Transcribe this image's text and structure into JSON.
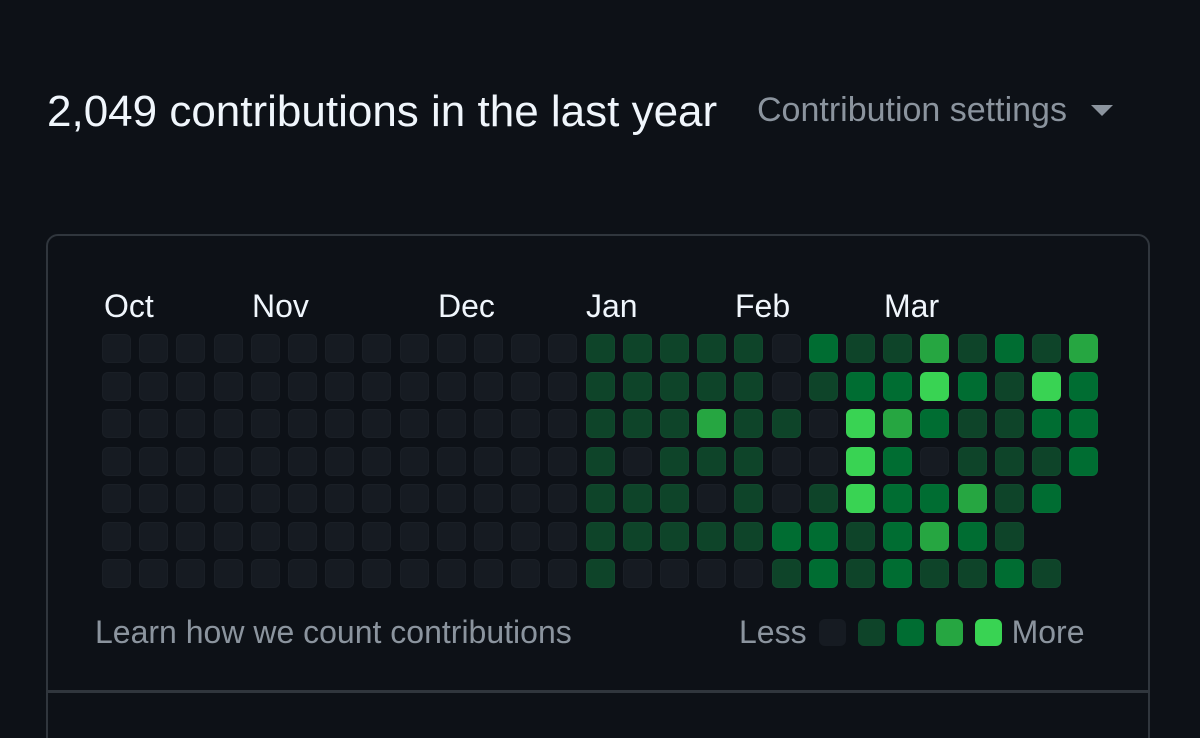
{
  "header": {
    "title": "2,049 contributions in the last year",
    "settings_label": "Contribution settings",
    "settings_icon": "caret-down-icon"
  },
  "months": [
    "Oct",
    "Nov",
    "Dec",
    "Jan",
    "Feb",
    "Mar"
  ],
  "colors": {
    "background": "#0d1117",
    "border": "#30363d",
    "muted_text": "#8b949e",
    "text": "#f0f6fc",
    "levels": [
      "#161b22",
      "#0e4429",
      "#006d32",
      "#26a641",
      "#39d353"
    ]
  },
  "footer": {
    "learn_link": "Learn how we count contributions",
    "less_label": "Less",
    "more_label": "More"
  },
  "chart_data": {
    "type": "heatmap",
    "rows": 7,
    "columns": 27,
    "x_labels": [
      "Oct",
      "Nov",
      "Dec",
      "Jan",
      "Feb",
      "Mar"
    ],
    "value_scale": "contribution level 0-4",
    "weeks": [
      [
        0,
        0,
        0,
        0,
        0,
        0,
        0
      ],
      [
        0,
        0,
        0,
        0,
        0,
        0,
        0
      ],
      [
        0,
        0,
        0,
        0,
        0,
        0,
        0
      ],
      [
        0,
        0,
        0,
        0,
        0,
        0,
        0
      ],
      [
        0,
        0,
        0,
        0,
        0,
        0,
        0
      ],
      [
        0,
        0,
        0,
        0,
        0,
        0,
        0
      ],
      [
        0,
        0,
        0,
        0,
        0,
        0,
        0
      ],
      [
        0,
        0,
        0,
        0,
        0,
        0,
        0
      ],
      [
        0,
        0,
        0,
        0,
        0,
        0,
        0
      ],
      [
        0,
        0,
        0,
        0,
        0,
        0,
        0
      ],
      [
        0,
        0,
        0,
        0,
        0,
        0,
        0
      ],
      [
        0,
        0,
        0,
        0,
        0,
        0,
        0
      ],
      [
        0,
        0,
        0,
        0,
        0,
        0,
        0
      ],
      [
        1,
        1,
        1,
        1,
        1,
        1,
        1
      ],
      [
        1,
        1,
        1,
        0,
        1,
        1,
        0
      ],
      [
        1,
        1,
        1,
        1,
        1,
        1,
        0
      ],
      [
        1,
        1,
        3,
        1,
        0,
        1,
        0
      ],
      [
        1,
        1,
        1,
        1,
        1,
        1,
        0
      ],
      [
        0,
        0,
        1,
        0,
        0,
        2,
        1
      ],
      [
        2,
        1,
        0,
        0,
        1,
        2,
        2
      ],
      [
        1,
        2,
        4,
        4,
        4,
        1,
        1
      ],
      [
        1,
        2,
        3,
        2,
        2,
        2,
        2
      ],
      [
        3,
        4,
        2,
        0,
        2,
        3,
        1
      ],
      [
        1,
        2,
        1,
        1,
        3,
        2,
        1
      ],
      [
        2,
        1,
        1,
        1,
        1,
        1,
        2
      ],
      [
        1,
        4,
        2,
        1,
        2,
        null,
        1
      ],
      [
        3,
        2,
        2,
        2,
        null,
        null,
        null
      ]
    ]
  }
}
